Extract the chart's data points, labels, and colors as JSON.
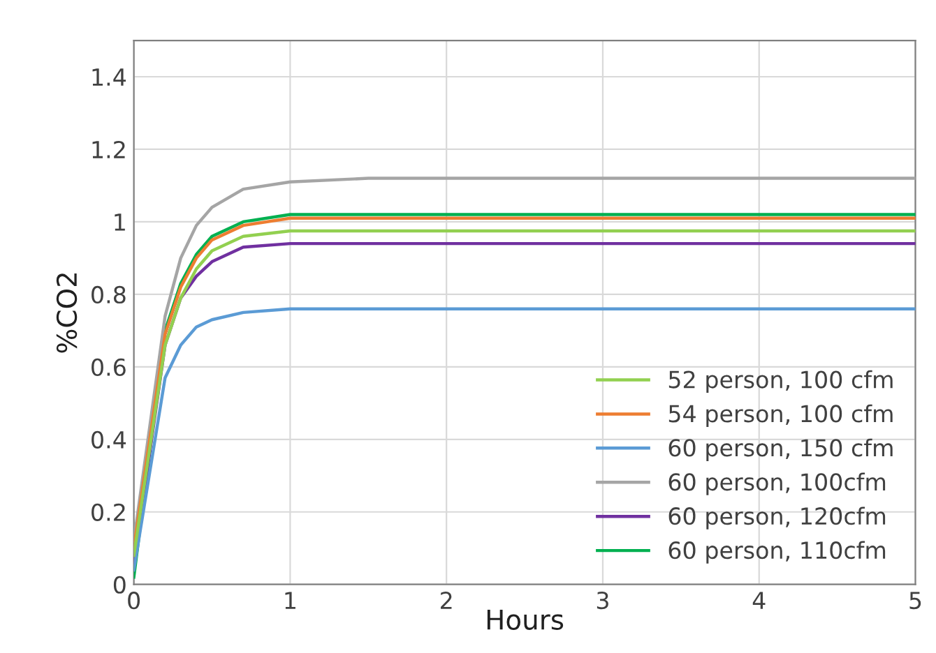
{
  "chart_data": {
    "type": "line",
    "xlabel": "Hours",
    "ylabel": "%CO2",
    "xlim": [
      0,
      5
    ],
    "xticks": [
      0,
      1,
      2,
      3,
      4,
      5
    ],
    "ylim": [
      0,
      1.5
    ],
    "yticks": [
      0,
      0.2,
      0.4,
      0.6,
      0.8,
      1,
      1.2,
      1.4
    ],
    "grid": true,
    "legend": "bottom right",
    "marker": "none",
    "line_style": "solid",
    "x": [
      0,
      0.2,
      0.3,
      0.4,
      0.5,
      0.7,
      1,
      1.5,
      2,
      3,
      4,
      5
    ],
    "series": [
      {
        "name": "52 person, 100 cfm",
        "color": "#92d050",
        "values": [
          0.08,
          0.66,
          0.79,
          0.87,
          0.92,
          0.96,
          0.975,
          0.975,
          0.975,
          0.975,
          0.975,
          0.975
        ]
      },
      {
        "name": "54 person, 100 cfm",
        "color": "#ed7d31",
        "values": [
          0.1,
          0.69,
          0.82,
          0.9,
          0.95,
          0.99,
          1.01,
          1.01,
          1.01,
          1.01,
          1.01,
          1.01
        ]
      },
      {
        "name": "60 person, 150 cfm",
        "color": "#5b9bd5",
        "values": [
          0.04,
          0.57,
          0.66,
          0.71,
          0.73,
          0.75,
          0.76,
          0.76,
          0.76,
          0.76,
          0.76,
          0.76
        ]
      },
      {
        "name": "60 person, 100cfm",
        "color": "#a5a5a5",
        "values": [
          0.12,
          0.74,
          0.9,
          0.99,
          1.04,
          1.09,
          1.11,
          1.12,
          1.12,
          1.12,
          1.12,
          1.12
        ]
      },
      {
        "name": "60 person, 120cfm",
        "color": "#7030a0",
        "values": [
          0.06,
          0.66,
          0.79,
          0.85,
          0.89,
          0.93,
          0.94,
          0.94,
          0.94,
          0.94,
          0.94,
          0.94
        ]
      },
      {
        "name": "60 person, 110cfm",
        "color": "#00b050",
        "values": [
          0.02,
          0.7,
          0.83,
          0.91,
          0.96,
          1.0,
          1.02,
          1.02,
          1.02,
          1.02,
          1.02,
          1.02
        ]
      }
    ]
  }
}
